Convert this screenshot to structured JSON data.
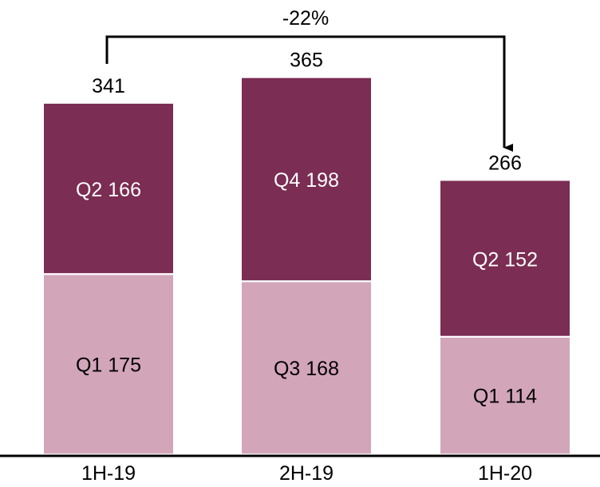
{
  "colors": {
    "dark_segment": "#7b2d53",
    "light_segment": "#d3a5b9",
    "label_light": "#ffffff",
    "label_dark": "#000000",
    "axis": "#000000"
  },
  "chart_data": {
    "type": "bar",
    "stacked": true,
    "categories": [
      "1H-19",
      "2H-19",
      "1H-20"
    ],
    "series": [
      {
        "values": [
          175,
          168,
          114
        ],
        "segment_labels": [
          "Q1 175",
          "Q3 168",
          "Q1 114"
        ]
      },
      {
        "values": [
          166,
          198,
          152
        ],
        "segment_labels": [
          "Q2 166",
          "Q4 198",
          "Q2 152"
        ]
      }
    ],
    "totals": [
      "341",
      "365",
      "266"
    ],
    "annotation": {
      "text": "-22%",
      "from": "1H-19",
      "to": "1H-20"
    },
    "title": "",
    "xlabel": "",
    "ylabel": "",
    "ylim": [
      0,
      365
    ],
    "grid": false
  }
}
